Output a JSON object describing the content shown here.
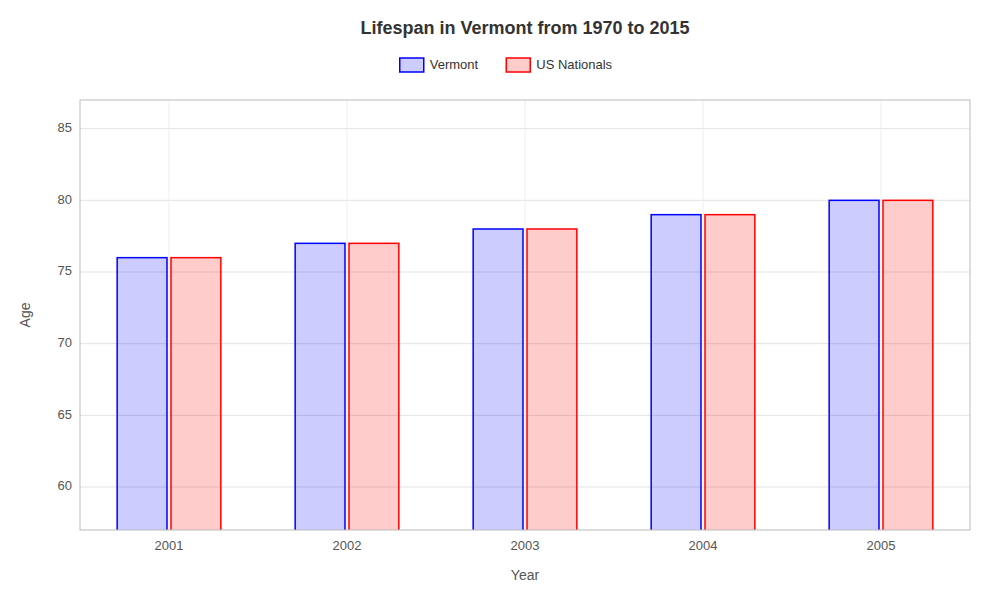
{
  "chart_data": {
    "type": "bar",
    "title": "Lifespan in Vermont from 1970 to 2015",
    "x_label": "Year",
    "y_label": "Age",
    "categories": [
      "2001",
      "2002",
      "2003",
      "2004",
      "2005"
    ],
    "series": [
      {
        "name": "Vermont",
        "color": "#0000ff",
        "values": [
          76,
          77,
          78,
          79,
          80
        ]
      },
      {
        "name": "US Nationals",
        "color": "#ff0000",
        "values": [
          76,
          77,
          78,
          79,
          80
        ]
      }
    ],
    "ylim": [
      57,
      87
    ],
    "yticks": [
      60,
      65,
      70,
      75,
      80,
      85
    ],
    "grid": true,
    "legend": "top"
  }
}
